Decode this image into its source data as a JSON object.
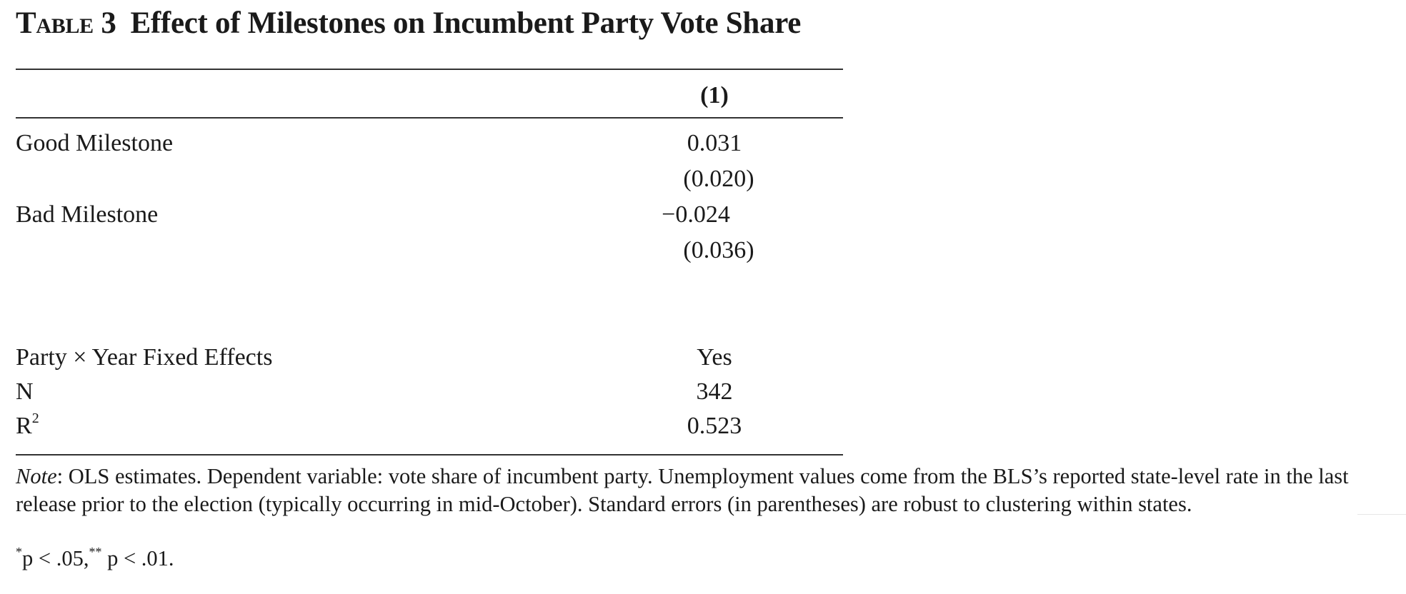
{
  "table": {
    "label": "Table 3",
    "title": "Effect of Milestones on Incumbent Party Vote Share",
    "column_header": "(1)",
    "rows": [
      {
        "label": "Good Milestone",
        "value": "0.031",
        "se": "(0.020)"
      },
      {
        "label": "Bad Milestone",
        "value": "−0.024",
        "se": "(0.036)"
      }
    ],
    "controls": [
      {
        "label": "Party × Year Fixed Effects",
        "value": "Yes"
      },
      {
        "label": "N",
        "value": "342"
      },
      {
        "label": "R",
        "label_sup": "2",
        "value": "0.523"
      }
    ]
  },
  "note": {
    "label": "Note",
    "text": ": OLS estimates. Dependent variable: vote share of incumbent party. Unemployment values come from the BLS’s reported state-level rate in the last release prior to the election (typically occurring in mid-October). Standard errors (in parentheses) are robust to clustering within states."
  },
  "significance": {
    "star1": "*",
    "text1": "p < .05,",
    "star2": "**",
    "text2": " p < .01."
  }
}
